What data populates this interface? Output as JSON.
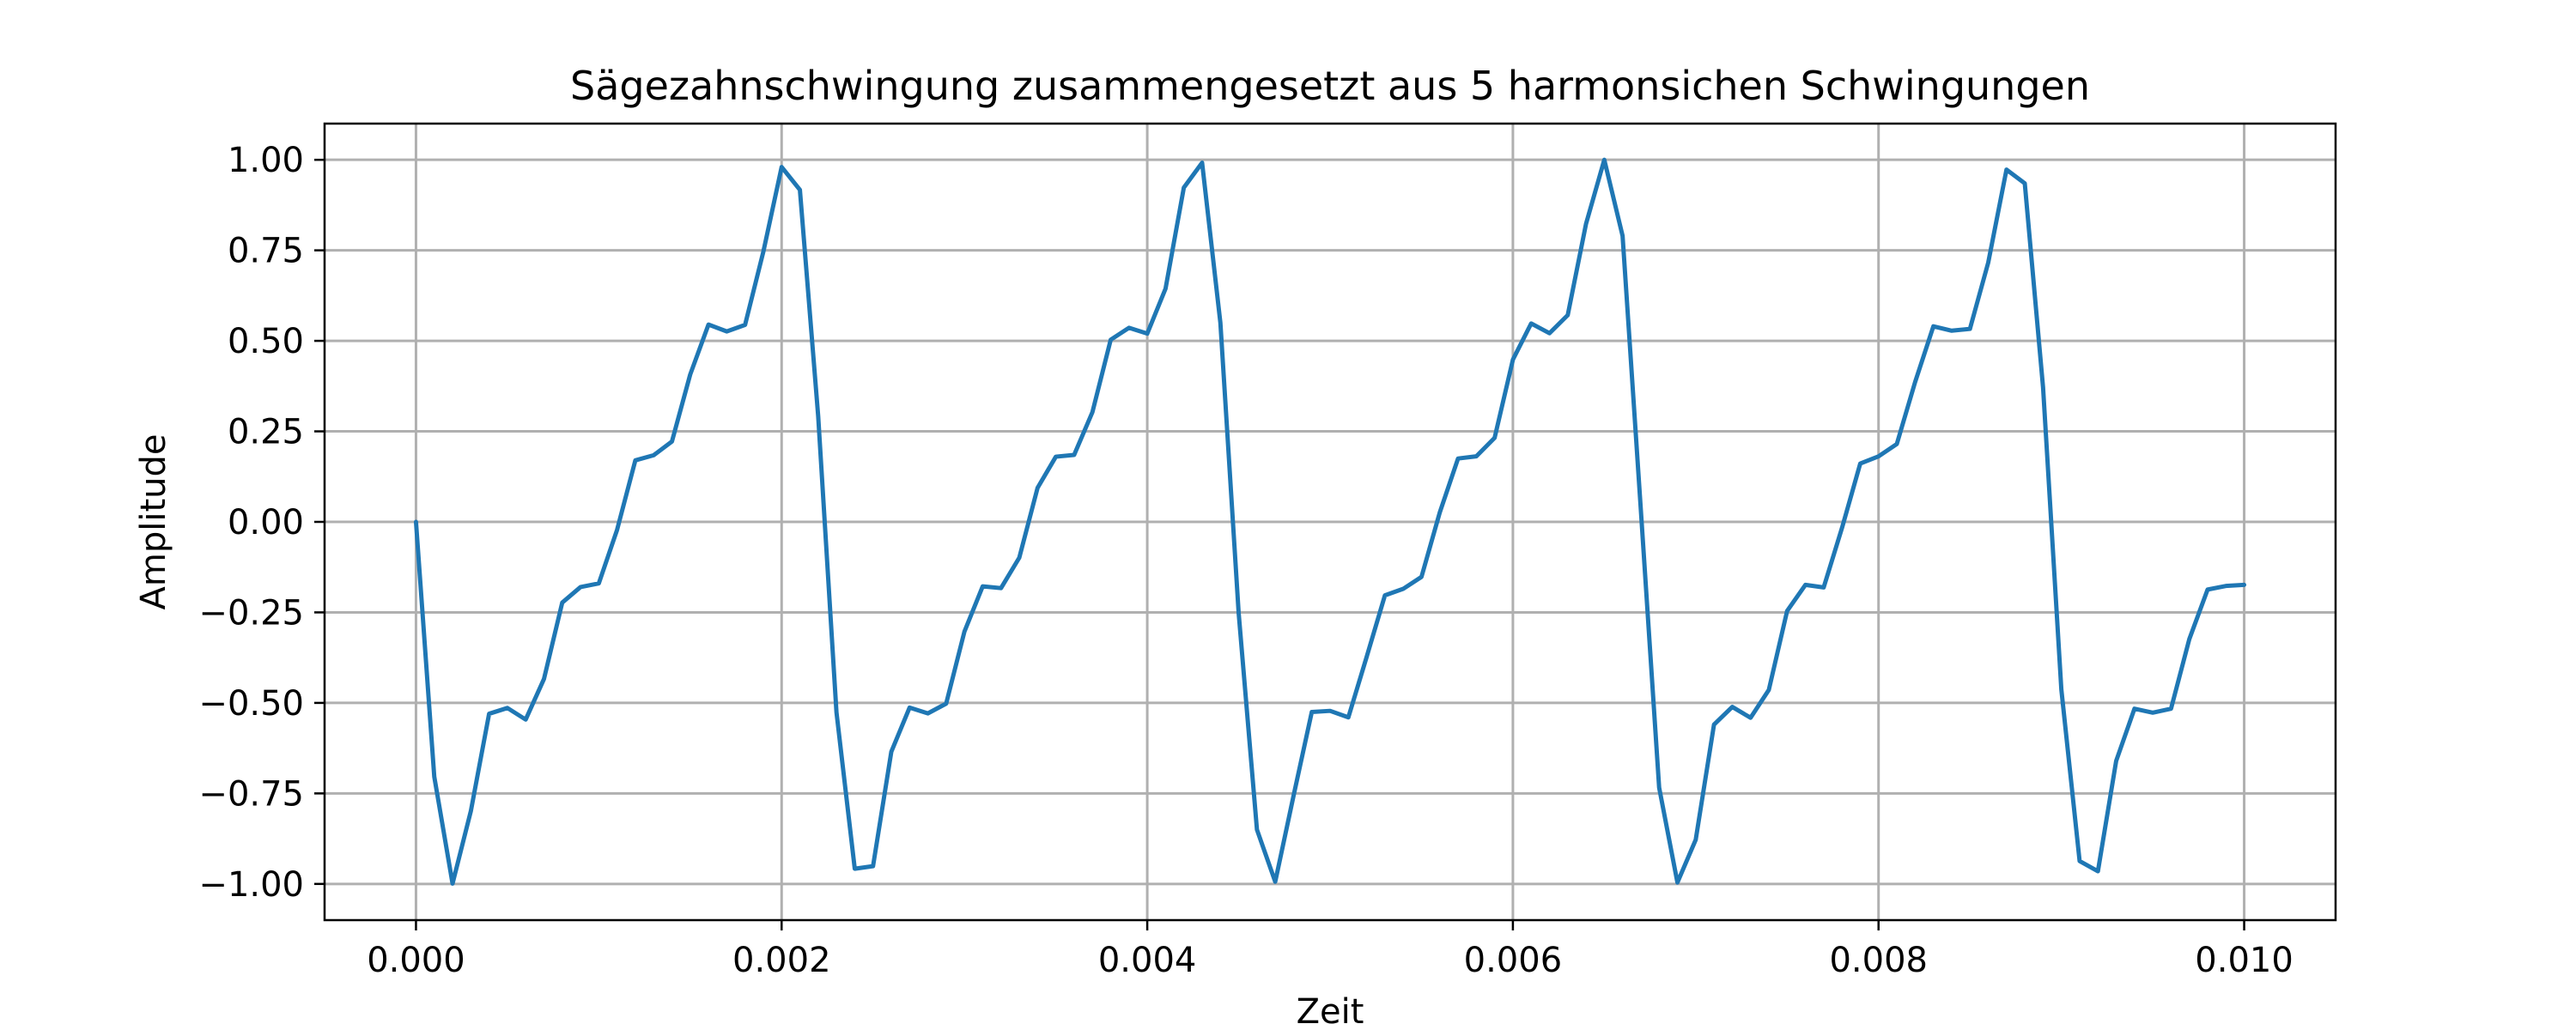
{
  "chart_data": {
    "type": "line",
    "title": "Sägezahnschwingung zusammengesetzt aus 5 harmonsichen Schwingungen",
    "xlabel": "Zeit",
    "ylabel": "Amplitude",
    "xlim": [
      -0.0005,
      0.0105
    ],
    "ylim": [
      -1.1,
      1.1
    ],
    "grid": true,
    "legend": "none",
    "x_ticks": [
      0.0,
      0.002,
      0.004,
      0.006,
      0.008,
      0.01
    ],
    "x_tick_labels": [
      "0.000",
      "0.002",
      "0.004",
      "0.006",
      "0.008",
      "0.010"
    ],
    "y_ticks": [
      1.0,
      0.75,
      0.5,
      0.25,
      0.0,
      -0.25,
      -0.5,
      -0.75,
      -1.0
    ],
    "y_tick_labels": [
      "1.00",
      "0.75",
      "0.50",
      "0.25",
      "0.00",
      "−0.25",
      "−0.50",
      "−0.75",
      "−1.00"
    ],
    "colors": {
      "line": "#1f77b4"
    },
    "series": [
      {
        "x": [
          0.0,
          0.0001,
          0.0002,
          0.0003,
          0.0004,
          0.0005,
          0.0006,
          0.0007,
          0.0008,
          0.0009,
          0.001,
          0.0011,
          0.0012,
          0.0013,
          0.0014,
          0.0015,
          0.0016,
          0.0017,
          0.0018,
          0.0019,
          0.002,
          0.0021,
          0.0022,
          0.0023,
          0.0024,
          0.0025,
          0.0026,
          0.0027,
          0.0028,
          0.0029,
          0.003,
          0.0031,
          0.0032,
          0.0033,
          0.0034,
          0.0035,
          0.0036,
          0.0037,
          0.0038,
          0.0039,
          0.004,
          0.0041,
          0.0042,
          0.0043,
          0.0044,
          0.0045,
          0.0046,
          0.0047,
          0.0048,
          0.0049,
          0.005,
          0.0051,
          0.0052,
          0.0053,
          0.0054,
          0.0055,
          0.0056,
          0.0057,
          0.0058,
          0.0059,
          0.006,
          0.0061,
          0.0062,
          0.0063,
          0.0064,
          0.0065,
          0.0066,
          0.0067,
          0.0068,
          0.0069,
          0.007,
          0.0071,
          0.0072,
          0.0073,
          0.0074,
          0.0075,
          0.0076,
          0.0077,
          0.0078,
          0.0079,
          0.008,
          0.0081,
          0.0082,
          0.0083,
          0.0084,
          0.0085,
          0.0086,
          0.0087,
          0.0088,
          0.0089,
          0.009,
          0.0091,
          0.0092,
          0.0093,
          0.0094,
          0.0095,
          0.0096,
          0.0097,
          0.0098,
          0.0099,
          0.01
        ],
        "y": [
          0.0,
          -0.704,
          -0.999,
          -0.799,
          -0.53,
          -0.514,
          -0.546,
          -0.434,
          -0.223,
          -0.18,
          -0.17,
          -0.022,
          0.17,
          0.184,
          0.222,
          0.407,
          0.545,
          0.526,
          0.544,
          0.746,
          0.98,
          0.917,
          0.292,
          -0.526,
          -0.958,
          -0.951,
          -0.635,
          -0.513,
          -0.529,
          -0.502,
          -0.303,
          -0.178,
          -0.183,
          -0.099,
          0.094,
          0.18,
          0.185,
          0.303,
          0.503,
          0.536,
          0.52,
          0.644,
          0.923,
          0.992,
          0.55,
          -0.252,
          -0.85,
          -0.994,
          -0.757,
          -0.525,
          -0.522,
          -0.54,
          -0.373,
          -0.203,
          -0.185,
          -0.152,
          0.026,
          0.175,
          0.181,
          0.232,
          0.448,
          0.548,
          0.521,
          0.571,
          0.823,
          1.0,
          0.79,
          0.032,
          -0.734,
          -0.996,
          -0.878,
          -0.56,
          -0.511,
          -0.541,
          -0.464,
          -0.246,
          -0.174,
          -0.181,
          -0.017,
          0.161,
          0.181,
          0.215,
          0.386,
          0.54,
          0.528,
          0.533,
          0.716,
          0.973,
          0.935,
          0.371,
          -0.463,
          -0.937,
          -0.965,
          -0.66,
          -0.516,
          -0.527,
          -0.516,
          -0.324,
          -0.187,
          -0.177,
          -0.174
        ]
      }
    ]
  }
}
